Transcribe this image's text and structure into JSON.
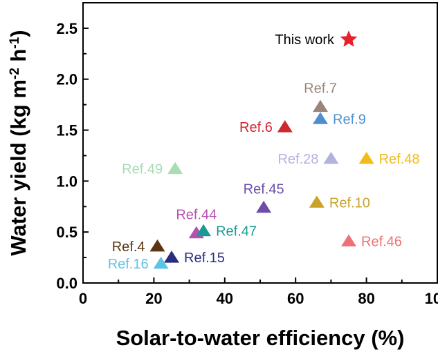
{
  "chart_data": {
    "type": "scatter",
    "xlabel": "Solar-to-water efficiency (%)",
    "ylabel_main": "Water yield (kg m",
    "ylabel_exp1": "-2",
    "ylabel_mid": " h",
    "ylabel_exp2": "-1",
    "ylabel_end": ")",
    "xlim": [
      0,
      100
    ],
    "ylim": [
      0,
      2.75
    ],
    "xticks": [
      "0",
      "20",
      "40",
      "60",
      "80",
      "100"
    ],
    "yticks": [
      "0.0",
      "0.5",
      "1.0",
      "1.5",
      "2.0",
      "2.5"
    ],
    "grid": false,
    "legend": "none",
    "points": [
      {
        "label": "This work",
        "x": 75,
        "y": 2.39,
        "marker": "star",
        "color": "#e8202a",
        "label_pos": "left"
      },
      {
        "label": "Ref.7",
        "x": 67,
        "y": 1.73,
        "marker": "triangle",
        "color": "#9b8578",
        "label_pos": "above"
      },
      {
        "label": "Ref.9",
        "x": 67,
        "y": 1.61,
        "marker": "triangle",
        "color": "#4f8fcf",
        "label_pos": "right"
      },
      {
        "label": "Ref.6",
        "x": 57,
        "y": 1.53,
        "marker": "triangle",
        "color": "#d0282e",
        "label_pos": "left"
      },
      {
        "label": "Ref.28",
        "x": 70,
        "y": 1.22,
        "marker": "triangle",
        "color": "#b2b2e0",
        "label_pos": "left"
      },
      {
        "label": "Ref.48",
        "x": 80,
        "y": 1.22,
        "marker": "triangle",
        "color": "#f2bb1a",
        "label_pos": "right"
      },
      {
        "label": "Ref.49",
        "x": 26,
        "y": 1.12,
        "marker": "triangle",
        "color": "#a8dcb2",
        "label_pos": "left"
      },
      {
        "label": "Ref.45",
        "x": 51,
        "y": 0.74,
        "marker": "triangle",
        "color": "#6c4ea8",
        "label_pos": "above"
      },
      {
        "label": "Ref.10",
        "x": 66,
        "y": 0.79,
        "marker": "triangle",
        "color": "#c9a22a",
        "label_pos": "right"
      },
      {
        "label": "Ref.44",
        "x": 32,
        "y": 0.49,
        "marker": "triangle",
        "color": "#b84fb3",
        "label_pos": "above"
      },
      {
        "label": "Ref.47",
        "x": 34,
        "y": 0.51,
        "marker": "triangle",
        "color": "#1a9a93",
        "label_pos": "right"
      },
      {
        "label": "Ref.46",
        "x": 75,
        "y": 0.41,
        "marker": "triangle",
        "color": "#f07078",
        "label_pos": "right"
      },
      {
        "label": "Ref.4",
        "x": 21,
        "y": 0.36,
        "marker": "triangle",
        "color": "#5a3512",
        "label_pos": "left"
      },
      {
        "label": "Ref.15",
        "x": 25,
        "y": 0.25,
        "marker": "triangle",
        "color": "#2a2e7e",
        "label_pos": "right"
      },
      {
        "label": "Ref.16",
        "x": 22,
        "y": 0.19,
        "marker": "triangle",
        "color": "#5ec4e6",
        "label_pos": "left"
      }
    ]
  }
}
